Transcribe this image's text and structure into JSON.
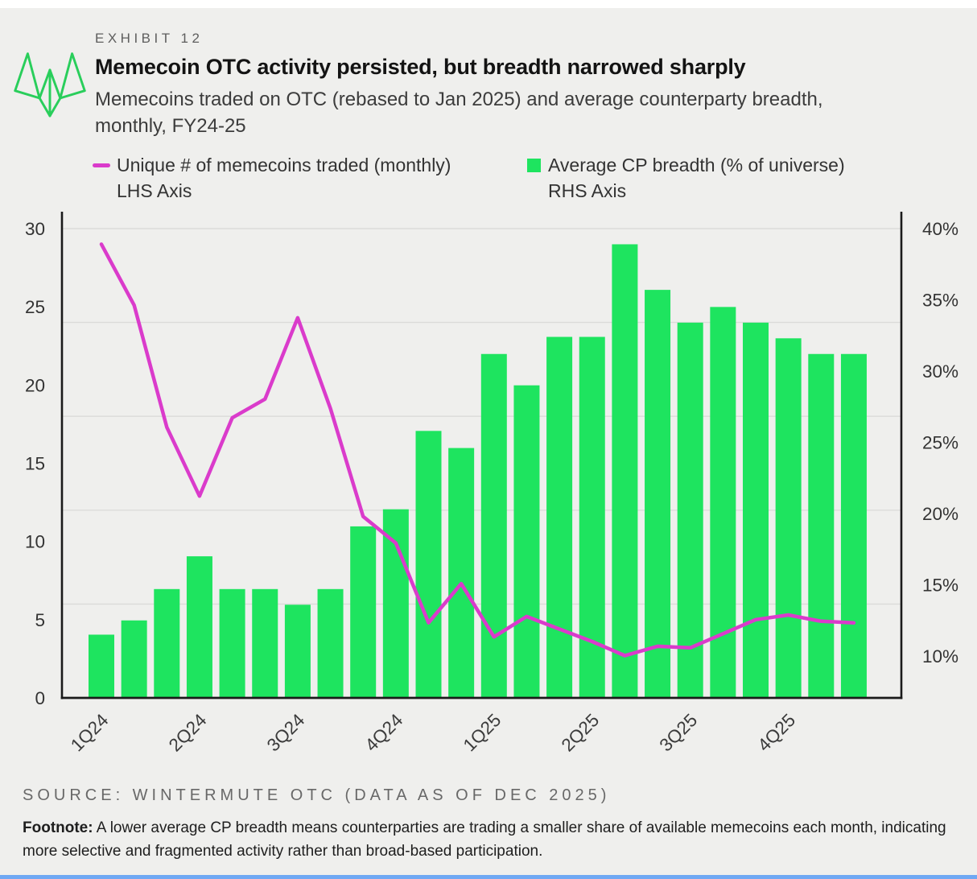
{
  "page": {
    "exhibit_label": "EXHIBIT 12",
    "title": "Memecoin OTC activity persisted, but breadth narrowed sharply",
    "subtitle_line1": "Memecoins traded on OTC (rebased to Jan 2025) and average counterparty breadth,",
    "subtitle_line2": "monthly, FY24-25",
    "source": "SOURCE: WINTERMUTE OTC (DATA AS OF DEC 2025)",
    "footnote_label": "Footnote:",
    "footnote_text": " A lower average CP breadth means counterparties are trading a smaller share of available memecoins each month, indicating more selective and fragmented activity rather than broad-based participation.",
    "logo_icon": "wintermute-fox-logo"
  },
  "legend": {
    "series1_label": "Unique # of memecoins traded (monthly)",
    "series1_sublabel": "LHS Axis",
    "series2_label": "Average CP breadth (% of universe)",
    "series2_sublabel": "RHS Axis"
  },
  "colors": {
    "background": "#EFEFED",
    "bar_green": "#1EE45F",
    "logo_green": "#29CE5B",
    "line_magenta": "#DA3BCB",
    "gridline": "#DBDBD9",
    "axis_spine": "#1A1A1A",
    "tick_text": "#333333"
  },
  "chart_data": {
    "type": "bar",
    "subtype": "dual-axis bar + line, monthly points grouped by quarter",
    "n_points": 24,
    "quarter_labels": [
      "1Q24",
      "2Q24",
      "3Q24",
      "4Q24",
      "1Q25",
      "2Q25",
      "3Q25",
      "4Q25"
    ],
    "months_per_quarter": 3,
    "left_axis": {
      "label": "Unique # of memecoins traded (monthly), LHS Axis",
      "min": 0,
      "max": 30,
      "tick_labels": [
        "0",
        "5",
        "10",
        "15",
        "20",
        "25",
        "30"
      ],
      "tick_values": [
        0,
        5,
        10,
        15,
        20,
        25,
        30
      ]
    },
    "right_axis": {
      "label": "Average CP breadth (% of universe), RHS Axis",
      "tick_labels": [
        "10%",
        "15%",
        "20%",
        "25%",
        "30%",
        "35%",
        "40%"
      ],
      "tick_values": [
        10,
        15,
        20,
        25,
        30,
        35,
        40
      ],
      "top_value": 40
    },
    "grid": "horizontal gridlines, 6 lines evenly spaced over left-axis 0-30 (every 6 units), plus baseline",
    "legend_position": "top, above plot",
    "series": [
      {
        "name": "Unique # of memecoins traded (monthly)",
        "kind": "line",
        "axis": "left",
        "color": "#DA3BCB",
        "values": [
          29.0,
          25.1,
          17.3,
          12.9,
          17.9,
          19.1,
          24.3,
          18.5,
          11.6,
          9.9,
          4.8,
          7.3,
          3.9,
          5.2,
          4.4,
          3.6,
          2.7,
          3.3,
          3.2,
          4.1,
          5.0,
          5.3,
          4.9,
          4.8
        ]
      },
      {
        "name": "Average CP breadth (% of universe)",
        "kind": "bar",
        "axis": "right",
        "color": "#1EE45F",
        "values": [
          11.5,
          12.5,
          14.7,
          17.0,
          14.7,
          14.7,
          13.6,
          14.7,
          19.1,
          20.3,
          25.8,
          24.6,
          31.2,
          29.0,
          32.4,
          32.4,
          38.9,
          35.7,
          33.4,
          34.5,
          33.4,
          32.3,
          31.2,
          31.2
        ]
      }
    ]
  }
}
